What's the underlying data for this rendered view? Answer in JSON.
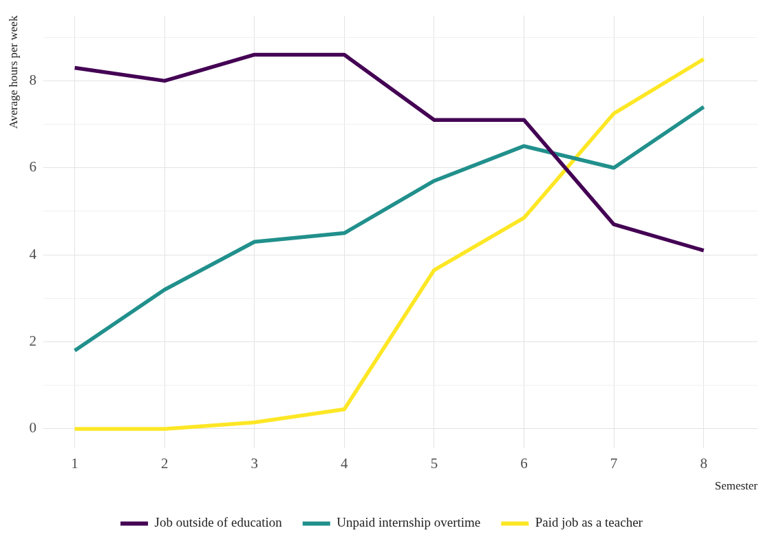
{
  "chart_data": {
    "type": "line",
    "xlabel": "Semester",
    "ylabel": "Average hours per week",
    "x": [
      1,
      2,
      3,
      4,
      5,
      6,
      7,
      8
    ],
    "series": [
      {
        "name": "Job outside of education",
        "color": "#440154",
        "values": [
          8.3,
          8.0,
          8.6,
          8.6,
          7.1,
          7.1,
          4.7,
          4.1
        ]
      },
      {
        "name": "Unpaid internship overtime",
        "color": "#21908c",
        "values": [
          1.8,
          3.2,
          4.3,
          4.5,
          5.7,
          6.5,
          6.0,
          7.4
        ]
      },
      {
        "name": "Paid job as a teacher",
        "color": "#fde725",
        "values": [
          0,
          0,
          0.15,
          0.45,
          3.65,
          4.85,
          7.25,
          8.5
        ]
      }
    ],
    "xlim": [
      0.65,
      8.6
    ],
    "xticks": [
      1,
      2,
      3,
      4,
      5,
      6,
      7,
      8
    ],
    "ylim": [
      -0.45,
      9.5
    ],
    "yticks": [
      0,
      {
        "value": 1,
        "label": null
      },
      2,
      {
        "value": 3,
        "label": null
      },
      4,
      {
        "value": 5,
        "label": null
      },
      6,
      {
        "value": 7,
        "label": null
      },
      8,
      {
        "value": 9,
        "label": null
      }
    ],
    "grid": true,
    "legend": "bottom",
    "marker": "none",
    "line_style": "solid"
  }
}
